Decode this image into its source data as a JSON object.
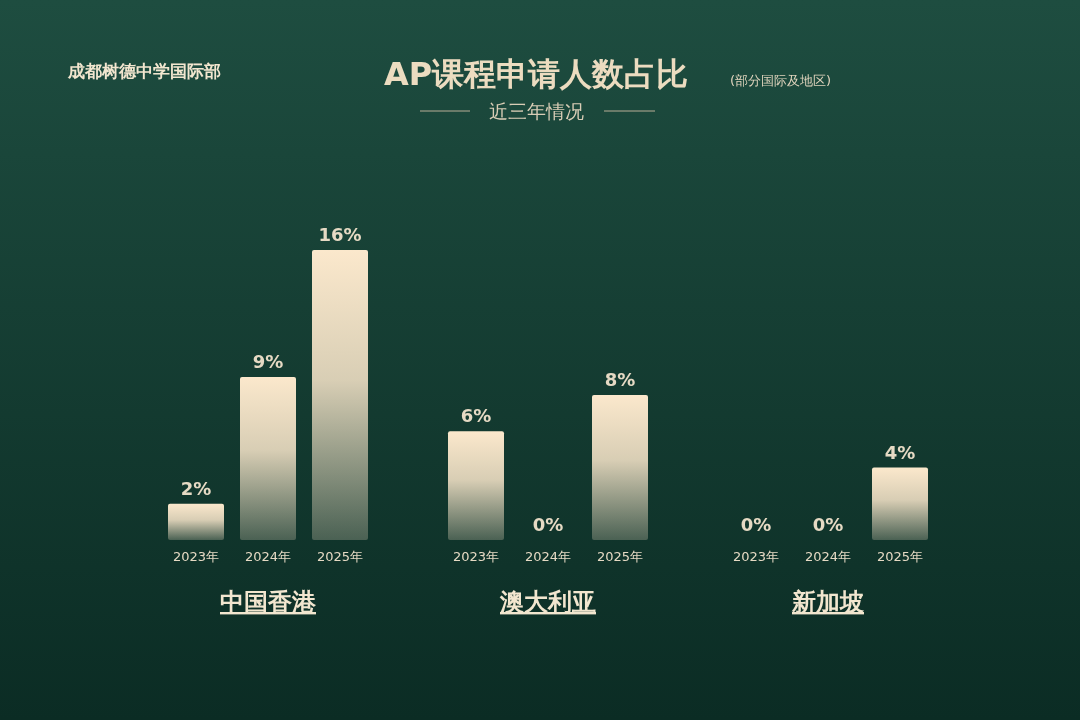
{
  "chart_data": {
    "type": "bar",
    "title": "AP课程申请人数占比",
    "subtitle": "近三年情况",
    "annotations": [
      "(部分国际及地区)",
      "成都树德中学国际部",
      "中国香港",
      "澳大利亚",
      "新加坡"
    ],
    "categories": [
      "2023年",
      "2024年",
      "2025年",
      "2023年",
      "2024年",
      "2025年",
      "2023年",
      "2024年",
      "2025年"
    ],
    "values": [
      2,
      9,
      16,
      6,
      0,
      8,
      0,
      0,
      4
    ],
    "value_labels": [
      "2%",
      "9%",
      "16%",
      "6%",
      "0%",
      "8%",
      "0%",
      "0%",
      "4%"
    ],
    "color": "#fbe8cc"
  }
}
